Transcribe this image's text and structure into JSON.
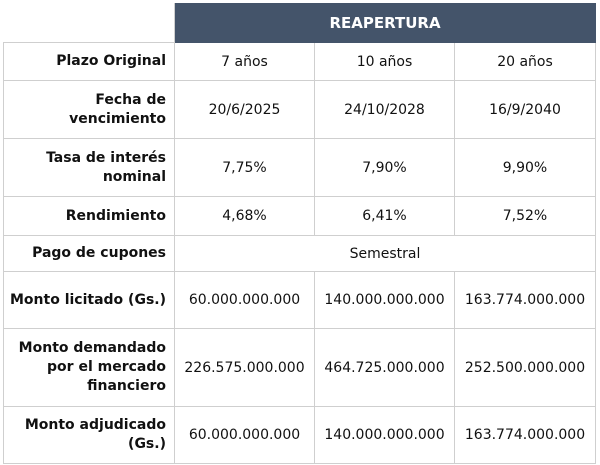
{
  "header": {
    "title": "REAPERTURA"
  },
  "rows": [
    {
      "label": "Plazo Original",
      "values": [
        "7 años",
        "10 años",
        "20 años"
      ]
    },
    {
      "label": "Fecha de vencimiento",
      "values": [
        "20/6/2025",
        "24/10/2028",
        "16/9/2040"
      ]
    },
    {
      "label": "Tasa de interés nominal",
      "values": [
        "7,75%",
        "7,90%",
        "9,90%"
      ]
    },
    {
      "label": "Rendimiento",
      "values": [
        "4,68%",
        "6,41%",
        "7,52%"
      ]
    },
    {
      "label": "Pago de cupones",
      "merged_value": "Semestral"
    },
    {
      "label": "Monto licitado (Gs.)",
      "values": [
        "60.000.000.000",
        "140.000.000.000",
        "163.774.000.000"
      ]
    },
    {
      "label": "Monto demandado por el mercado financiero",
      "values": [
        "226.575.000.000",
        "464.725.000.000",
        "252.500.000.000"
      ]
    },
    {
      "label": "Monto adjudicado (Gs.)",
      "values": [
        "60.000.000.000",
        "140.000.000.000",
        "163.774.000.000"
      ]
    }
  ]
}
